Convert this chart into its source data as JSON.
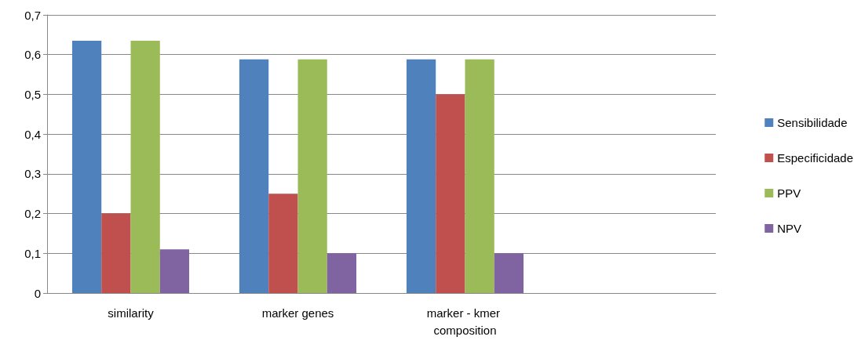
{
  "chart_data": {
    "type": "bar",
    "categories": [
      "similarity",
      "marker genes",
      "marker - kmer composition",
      null
    ],
    "series": [
      {
        "name": "Sensibilidade",
        "color": "#4f81bd",
        "values": [
          0.635,
          0.588,
          0.588,
          null
        ]
      },
      {
        "name": "Especificidade",
        "color": "#c0504d",
        "values": [
          0.2,
          0.25,
          0.5,
          null
        ]
      },
      {
        "name": "PPV",
        "color": "#9bbb59",
        "values": [
          0.635,
          0.588,
          0.588,
          null
        ]
      },
      {
        "name": "NPV",
        "color": "#8064a2",
        "values": [
          0.11,
          0.1,
          0.1,
          null
        ]
      }
    ],
    "ylim": [
      0,
      0.7
    ],
    "yticks": [
      {
        "value": 0,
        "label": "0"
      },
      {
        "value": 0.1,
        "label": "0,1"
      },
      {
        "value": 0.2,
        "label": "0,2"
      },
      {
        "value": 0.3,
        "label": "0,3"
      },
      {
        "value": 0.4,
        "label": "0,4"
      },
      {
        "value": 0.5,
        "label": "0,5"
      },
      {
        "value": 0.6,
        "label": "0,6"
      },
      {
        "value": 0.7,
        "label": "0,7"
      }
    ],
    "grid": "y",
    "legend": "right"
  }
}
